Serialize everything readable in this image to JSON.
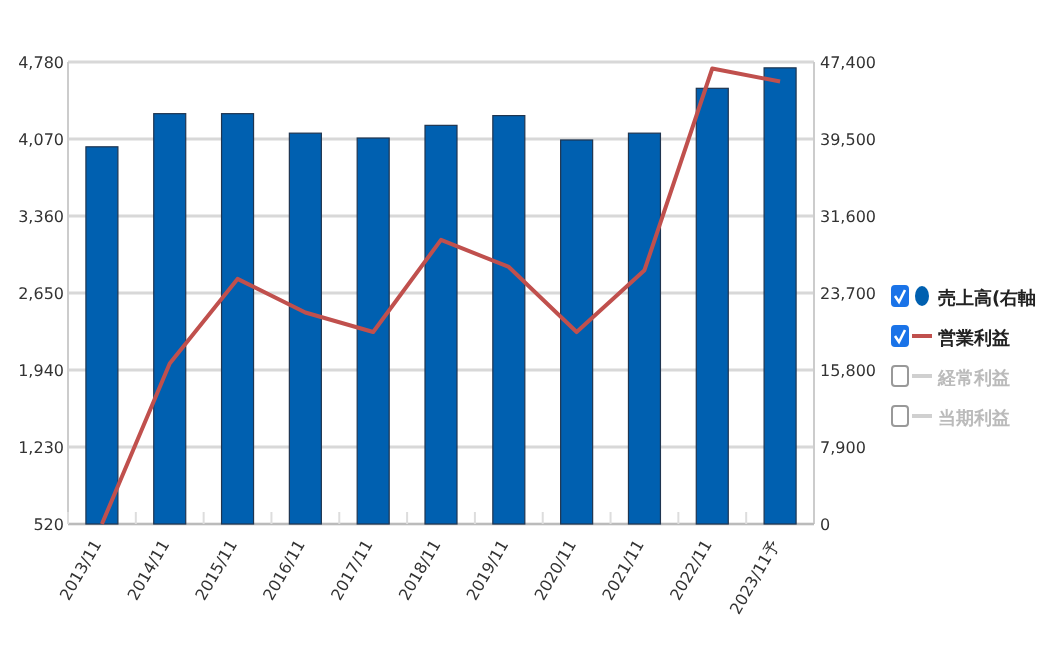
{
  "chart_data": {
    "type": "bar",
    "categories": [
      "2013/11",
      "2014/11",
      "2015/11",
      "2016/11",
      "2017/11",
      "2018/11",
      "2019/11",
      "2020/11",
      "2021/11",
      "2022/11",
      "2023/11予"
    ],
    "series": [
      {
        "name": "売上高(右軸",
        "axis": "y2",
        "color": "#0060b0",
        "values": [
          38700,
          42100,
          42100,
          40100,
          39600,
          40900,
          41900,
          39400,
          40100,
          44700,
          46800
        ]
      },
      {
        "name": "営業利益",
        "type": "line",
        "color": "#c0504d",
        "values": [
          520,
          2000,
          2780,
          2470,
          2290,
          3140,
          2890,
          2290,
          2860,
          4720,
          4600
        ]
      },
      {
        "name": "経常利益",
        "type": "line",
        "color": "#d0d0d0",
        "values": [
          null,
          null,
          null,
          null,
          null,
          null,
          null,
          null,
          null,
          null,
          null
        ]
      },
      {
        "name": "当期利益",
        "type": "line",
        "color": "#d0d0d0",
        "values": [
          null,
          null,
          null,
          null,
          null,
          null,
          null,
          null,
          null,
          null,
          null
        ]
      }
    ],
    "ylim": [
      520,
      4780
    ],
    "yticks": [
      520,
      {
        "value": 1230,
        "label": "1,230"
      },
      {
        "value": 1940,
        "label": "1,940"
      },
      {
        "value": 2650,
        "label": "2,650"
      },
      {
        "value": 3360,
        "label": "3,360"
      },
      {
        "value": 4070,
        "label": "4,070"
      },
      {
        "value": 4780,
        "label": "4,780"
      }
    ],
    "y2lim": [
      0,
      47400
    ],
    "y2ticks": [
      0,
      {
        "value": 7900,
        "label": "7,900"
      },
      {
        "value": 15800,
        "label": "15,800"
      },
      {
        "value": 23700,
        "label": "23,700"
      },
      {
        "value": 31600,
        "label": "31,600"
      },
      {
        "value": 39500,
        "label": "39,500"
      },
      {
        "value": 47400,
        "label": "47,400"
      }
    ],
    "grid": "y",
    "legend": "right"
  }
}
